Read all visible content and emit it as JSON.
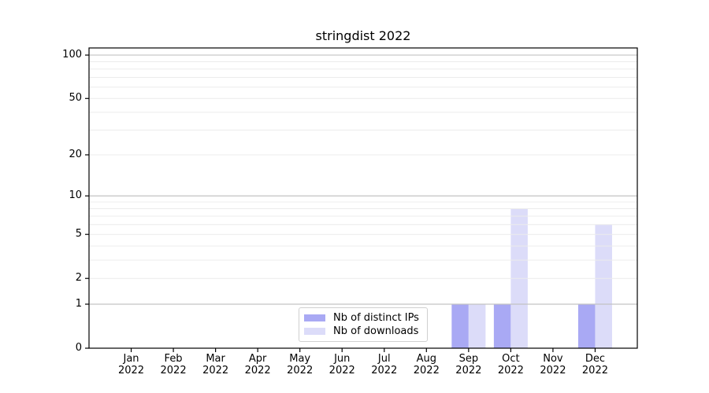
{
  "chart_data": {
    "type": "bar",
    "title": "stringdist 2022",
    "categories": [
      "Jan",
      "Feb",
      "Mar",
      "Apr",
      "May",
      "Jun",
      "Jul",
      "Aug",
      "Sep",
      "Oct",
      "Nov",
      "Dec"
    ],
    "year_label": "2022",
    "series": [
      {
        "name": "Nb of distinct IPs",
        "color": "#a9a9f4",
        "values": [
          0,
          0,
          0,
          0,
          0,
          0,
          0,
          0,
          1,
          1,
          0,
          1
        ]
      },
      {
        "name": "Nb of downloads",
        "color": "#dcdcf9",
        "values": [
          0,
          0,
          0,
          0,
          0,
          0,
          0,
          0,
          1,
          8,
          0,
          6
        ]
      }
    ],
    "yscale": "log1p",
    "ylim": [
      0,
      112
    ],
    "ytick_values": [
      0,
      1,
      2,
      5,
      10,
      20,
      50,
      100
    ],
    "major_grid_values": [
      1,
      10,
      100
    ],
    "minor_grid_values": [
      2,
      3,
      4,
      5,
      6,
      7,
      8,
      9,
      20,
      30,
      40,
      50,
      60,
      70,
      80,
      90
    ],
    "grid": true,
    "legend_position": "bottom-center"
  },
  "colors": {
    "major_grid": "#c3c3c3",
    "minor_grid": "#ececec",
    "axis": "#000000",
    "background": "#ffffff"
  }
}
